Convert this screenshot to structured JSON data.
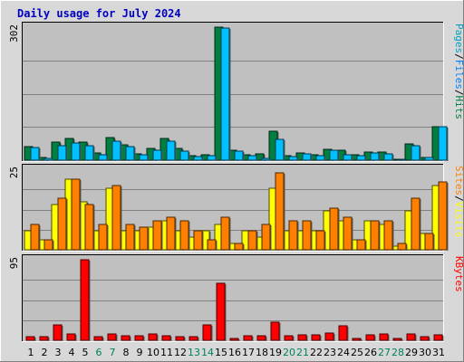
{
  "chart_data": {
    "type": "bar",
    "title": "Daily usage for July 2024",
    "categories": [
      "1",
      "2",
      "3",
      "4",
      "5",
      "6",
      "7",
      "8",
      "9",
      "10",
      "11",
      "12",
      "13",
      "14",
      "15",
      "16",
      "17",
      "18",
      "19",
      "20",
      "21",
      "22",
      "23",
      "24",
      "25",
      "26",
      "27",
      "28",
      "29",
      "30",
      "31"
    ],
    "weekend_days": [
      "6",
      "7",
      "13",
      "14",
      "20",
      "21",
      "27",
      "28"
    ],
    "colors": {
      "hits": "#008040",
      "files": "#00c0ff",
      "pages": "#00e0e0",
      "visits": "#ffff00",
      "sites": "#ff8000",
      "kbytes": "#ff0000",
      "title": "#0000c0",
      "weekday_tick": "#000000",
      "weekend_tick": "#00805c",
      "panel": "#c0c0c0",
      "grid": "#808080",
      "background": "#d8d8d8"
    },
    "panels": [
      {
        "id": "hits",
        "max_label": "302",
        "ymax": 302,
        "side_labels": [
          {
            "text": "Pages",
            "color": "#00a0c0"
          },
          {
            "text": "/",
            "color": "#000000"
          },
          {
            "text": "Files",
            "color": "#0080ff"
          },
          {
            "text": "/",
            "color": "#000000"
          },
          {
            "text": "Hits",
            "color": "#008040"
          }
        ],
        "series": [
          {
            "name": "Hits",
            "color": "#008040",
            "values": [
              30,
              6,
              42,
              50,
              42,
              16,
              52,
              35,
              14,
              27,
              50,
              27,
              10,
              12,
              302,
              22,
              12,
              15,
              65,
              11,
              16,
              12,
              25,
              22,
              12,
              18,
              18,
              3,
              36,
              7,
              75
            ]
          },
          {
            "name": "Files",
            "color": "#00c0ff",
            "values": [
              28,
              5,
              32,
              40,
              32,
              12,
              44,
              30,
              12,
              22,
              44,
              20,
              8,
              10,
              300,
              20,
              10,
              5,
              48,
              9,
              14,
              10,
              22,
              12,
              10,
              16,
              14,
              2,
              32,
              6,
              75
            ]
          }
        ]
      },
      {
        "id": "visits",
        "max_label": "25",
        "ymax": 25,
        "side_labels": [
          {
            "text": "Sites",
            "color": "#ff8000"
          },
          {
            "text": "/",
            "color": "#000000"
          },
          {
            "text": "Visits",
            "color": "#ffff00"
          }
        ],
        "series": [
          {
            "name": "Visits",
            "color": "#ffff00",
            "values": [
              6,
              3,
              14,
              22,
              15,
              6,
              19,
              6,
              6,
              7,
              9,
              6,
              4,
              6,
              8,
              2,
              6,
              4,
              19,
              6,
              6,
              6,
              12,
              9,
              3,
              9,
              8,
              1,
              12,
              5,
              20
            ]
          },
          {
            "name": "Sites",
            "color": "#ff8000",
            "values": [
              8,
              3,
              16,
              22,
              14,
              8,
              20,
              8,
              7,
              9,
              10,
              9,
              6,
              3,
              10,
              2,
              6,
              8,
              24,
              9,
              9,
              6,
              13,
              10,
              3,
              9,
              9,
              2,
              16,
              5,
              21
            ]
          }
        ]
      },
      {
        "id": "kbytes",
        "max_label": "95",
        "ymax": 95,
        "side_labels": [
          {
            "text": "KBytes",
            "color": "#ff0000"
          }
        ],
        "series": [
          {
            "name": "KBytes",
            "color": "#ff0000",
            "values": [
              4,
              4,
              18,
              8,
              95,
              4,
              8,
              5,
              5,
              8,
              5,
              4,
              4,
              18,
              67,
              2,
              5,
              5,
              21,
              5,
              6,
              6,
              9,
              17,
              2,
              6,
              7,
              2,
              7,
              4,
              6
            ]
          }
        ]
      }
    ]
  }
}
